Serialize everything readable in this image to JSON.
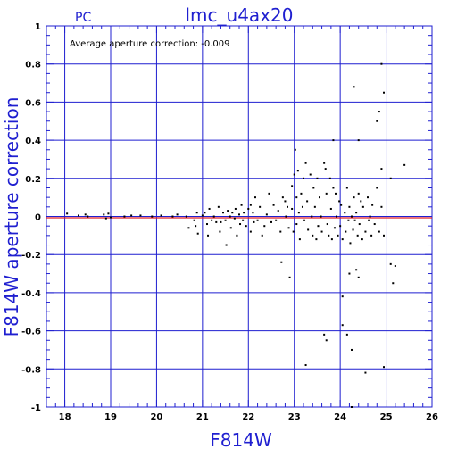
{
  "chart_data": {
    "type": "scatter",
    "title": "lmc_u4ax20",
    "corner_label": "PC",
    "annotation": "Average aperture correction: -0.009",
    "xlabel": "F814W",
    "ylabel": "F814W aperture correction",
    "xlim": [
      17.6,
      26
    ],
    "ylim": [
      -1,
      1
    ],
    "x_ticks": [
      "18",
      "19",
      "20",
      "21",
      "22",
      "23",
      "24",
      "25",
      "26"
    ],
    "y_ticks": [
      "1",
      "0.8",
      "0.6",
      "0.4",
      "0.2",
      "0",
      "-0.2",
      "-0.4",
      "-0.6",
      "-0.8",
      "-1"
    ],
    "grid": true,
    "reference_line": {
      "y": 0,
      "color": "#e0202a"
    },
    "colors": {
      "axis": "#1f1fd0",
      "points": "#000000"
    },
    "points": [
      [
        18.05,
        0.015
      ],
      [
        18.3,
        0.005
      ],
      [
        18.45,
        0.01
      ],
      [
        18.5,
        0.0
      ],
      [
        18.85,
        0.01
      ],
      [
        18.9,
        -0.01
      ],
      [
        18.95,
        0.015
      ],
      [
        19.0,
        -0.005
      ],
      [
        19.3,
        0.0
      ],
      [
        19.45,
        0.005
      ],
      [
        19.65,
        0.005
      ],
      [
        19.9,
        0.0
      ],
      [
        20.1,
        0.005
      ],
      [
        20.35,
        0.0
      ],
      [
        20.45,
        0.01
      ],
      [
        20.65,
        0.0
      ],
      [
        20.7,
        -0.06
      ],
      [
        20.82,
        -0.02
      ],
      [
        20.85,
        -0.05
      ],
      [
        20.88,
        0.02
      ],
      [
        20.9,
        -0.09
      ],
      [
        21.0,
        0.005
      ],
      [
        21.05,
        0.02
      ],
      [
        21.1,
        -0.04
      ],
      [
        21.12,
        -0.1
      ],
      [
        21.15,
        0.04
      ],
      [
        21.2,
        -0.02
      ],
      [
        21.25,
        0.0
      ],
      [
        21.3,
        -0.03
      ],
      [
        21.35,
        0.05
      ],
      [
        21.38,
        -0.08
      ],
      [
        21.4,
        -0.03
      ],
      [
        21.45,
        0.02
      ],
      [
        21.5,
        -0.02
      ],
      [
        21.52,
        -0.15
      ],
      [
        21.55,
        0.03
      ],
      [
        21.6,
        0.0
      ],
      [
        21.62,
        -0.06
      ],
      [
        21.65,
        0.02
      ],
      [
        21.7,
        -0.01
      ],
      [
        21.72,
        0.04
      ],
      [
        21.75,
        -0.1
      ],
      [
        21.8,
        0.01
      ],
      [
        21.82,
        -0.04
      ],
      [
        21.85,
        0.06
      ],
      [
        21.88,
        -0.02
      ],
      [
        21.9,
        0.02
      ],
      [
        21.95,
        -0.05
      ],
      [
        22.0,
        0.04
      ],
      [
        22.05,
        0.06
      ],
      [
        22.05,
        -0.08
      ],
      [
        22.1,
        0.02
      ],
      [
        22.12,
        -0.03
      ],
      [
        22.15,
        0.1
      ],
      [
        22.2,
        -0.02
      ],
      [
        22.25,
        0.05
      ],
      [
        22.3,
        -0.1
      ],
      [
        22.35,
        -0.05
      ],
      [
        22.4,
        0.01
      ],
      [
        22.45,
        0.12
      ],
      [
        22.5,
        -0.03
      ],
      [
        22.55,
        0.06
      ],
      [
        22.6,
        -0.02
      ],
      [
        22.65,
        0.03
      ],
      [
        22.7,
        -0.08
      ],
      [
        22.75,
        0.1
      ],
      [
        22.72,
        -0.24
      ],
      [
        22.8,
        0.08
      ],
      [
        22.82,
        0.0
      ],
      [
        22.85,
        0.05
      ],
      [
        22.88,
        -0.06
      ],
      [
        22.9,
        -0.32
      ],
      [
        22.95,
        0.16
      ],
      [
        22.95,
        0.04
      ],
      [
        22.98,
        -0.08
      ],
      [
        23.0,
        0.22
      ],
      [
        23.02,
        0.35
      ],
      [
        23.05,
        0.1
      ],
      [
        23.05,
        -0.04
      ],
      [
        23.08,
        0.24
      ],
      [
        23.1,
        0.02
      ],
      [
        23.12,
        -0.12
      ],
      [
        23.15,
        0.12
      ],
      [
        23.18,
        0.05
      ],
      [
        23.2,
        0.2
      ],
      [
        23.22,
        -0.02
      ],
      [
        23.25,
        0.28
      ],
      [
        23.28,
        0.08
      ],
      [
        23.3,
        -0.07
      ],
      [
        23.35,
        0.22
      ],
      [
        23.38,
        0.0
      ],
      [
        23.4,
        -0.1
      ],
      [
        23.42,
        0.15
      ],
      [
        23.45,
        0.05
      ],
      [
        23.48,
        -0.12
      ],
      [
        23.5,
        0.2
      ],
      [
        23.52,
        -0.05
      ],
      [
        23.55,
        0.1
      ],
      [
        23.58,
        0.0
      ],
      [
        23.6,
        -0.08
      ],
      [
        23.65,
        0.28
      ],
      [
        23.68,
        0.25
      ],
      [
        23.7,
        0.12
      ],
      [
        23.72,
        -0.04
      ],
      [
        23.75,
        -0.1
      ],
      [
        23.78,
        0.2
      ],
      [
        23.8,
        0.04
      ],
      [
        23.82,
        -0.12
      ],
      [
        23.85,
        0.15
      ],
      [
        23.88,
        -0.06
      ],
      [
        23.9,
        0.12
      ],
      [
        23.92,
        0.0
      ],
      [
        23.95,
        -0.1
      ],
      [
        23.98,
        0.08
      ],
      [
        24.0,
        -0.05
      ],
      [
        24.02,
        0.06
      ],
      [
        24.05,
        -0.12
      ],
      [
        24.1,
        0.02
      ],
      [
        24.12,
        -0.08
      ],
      [
        24.15,
        0.15
      ],
      [
        24.18,
        -0.02
      ],
      [
        24.2,
        0.05
      ],
      [
        24.22,
        -0.14
      ],
      [
        24.25,
        0.0
      ],
      [
        24.28,
        -0.07
      ],
      [
        24.3,
        0.1
      ],
      [
        24.32,
        -0.02
      ],
      [
        24.35,
        0.02
      ],
      [
        24.38,
        -0.1
      ],
      [
        24.4,
        0.12
      ],
      [
        24.42,
        -0.04
      ],
      [
        24.45,
        0.08
      ],
      [
        24.48,
        -0.12
      ],
      [
        24.5,
        0.05
      ],
      [
        24.55,
        -0.08
      ],
      [
        24.6,
        0.1
      ],
      [
        24.62,
        -0.02
      ],
      [
        24.65,
        0.0
      ],
      [
        24.68,
        -0.1
      ],
      [
        24.7,
        0.06
      ],
      [
        24.75,
        -0.04
      ],
      [
        24.8,
        0.15
      ],
      [
        24.85,
        -0.08
      ],
      [
        24.9,
        0.05
      ],
      [
        24.95,
        -0.1
      ],
      [
        23.65,
        -0.62
      ],
      [
        23.7,
        -0.65
      ],
      [
        23.25,
        -0.78
      ],
      [
        24.05,
        -0.42
      ],
      [
        24.05,
        -0.57
      ],
      [
        24.15,
        -0.62
      ],
      [
        24.2,
        -0.3
      ],
      [
        24.25,
        -0.7
      ],
      [
        24.35,
        -0.28
      ],
      [
        24.4,
        -0.32
      ],
      [
        24.25,
        -1.0
      ],
      [
        24.55,
        -0.82
      ],
      [
        24.95,
        -0.79
      ],
      [
        25.1,
        -0.25
      ],
      [
        25.15,
        -0.35
      ],
      [
        25.2,
        -0.26
      ],
      [
        24.9,
        0.25
      ],
      [
        24.8,
        0.5
      ],
      [
        24.85,
        0.55
      ],
      [
        24.9,
        0.8
      ],
      [
        24.95,
        0.65
      ],
      [
        24.3,
        0.68
      ],
      [
        24.4,
        0.4
      ],
      [
        23.85,
        0.4
      ],
      [
        25.1,
        0.2
      ],
      [
        25.4,
        0.27
      ]
    ]
  }
}
